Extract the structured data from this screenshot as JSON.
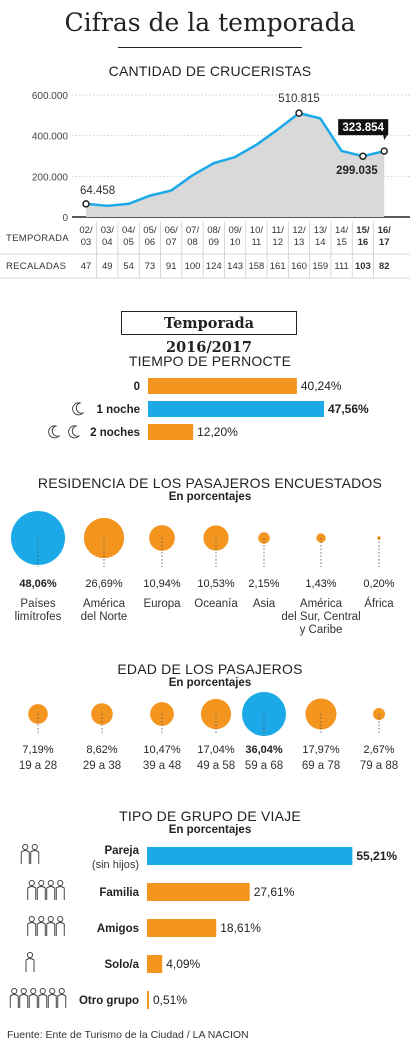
{
  "title": "Cifras de la temporada",
  "source": "Fuente: Ente de Turismo de la Ciudad / LA NACION",
  "colors": {
    "orange": "#f3951f",
    "blue": "#1ba9e8",
    "area": "#d9d9d9",
    "line": "#1ba9e8"
  },
  "cruise": {
    "section_title": "CANTIDAD DE CRUCERISTAS",
    "row_label_season": "TEMPORADA",
    "row_label_calls": "RECALADAS"
  },
  "season_box": "Temporada 2016/2017",
  "pernocte": {
    "section_title": "TIEMPO DE PERNOCTE",
    "moon_icon": "crescent-moon-icon"
  },
  "residencia": {
    "section_title": "RESIDENCIA DE LOS PASAJEROS ENCUESTADOS",
    "subtitle": "En porcentajes"
  },
  "edad": {
    "section_title": "EDAD DE LOS PASAJEROS",
    "subtitle": "En porcentajes"
  },
  "grupo": {
    "section_title": "TIPO DE GRUPO DE VIAJE",
    "subtitle": "En porcentajes",
    "person_icon": "person-icon"
  },
  "chart_data": [
    {
      "type": "area",
      "title": "CANTIDAD DE CRUCERISTAS",
      "categories": [
        "02/03",
        "03/04",
        "04/05",
        "05/06",
        "06/07",
        "07/08",
        "08/09",
        "09/10",
        "10/11",
        "11/12",
        "12/13",
        "13/14",
        "14/15",
        "15/16",
        "16/17"
      ],
      "values": [
        64458,
        55000,
        65000,
        105000,
        130000,
        205000,
        265000,
        295000,
        355000,
        430000,
        510815,
        485000,
        325000,
        299035,
        323854
      ],
      "recaladas": [
        47,
        49,
        54,
        73,
        91,
        100,
        124,
        143,
        158,
        161,
        160,
        159,
        111,
        103,
        82
      ],
      "yticks": [
        0,
        200000,
        400000,
        600000
      ],
      "ytick_labels": [
        "0",
        "200.000",
        "400.000",
        "600.000"
      ],
      "ylim": [
        0,
        600000
      ],
      "grid": true,
      "annotations": [
        {
          "index": 0,
          "text": "64.458",
          "style": "plain"
        },
        {
          "index": 10,
          "text": "510.815",
          "style": "plain"
        },
        {
          "index": 13,
          "text": "299.035",
          "style": "bold"
        },
        {
          "index": 14,
          "text": "323.854",
          "style": "boxed"
        }
      ]
    },
    {
      "type": "bar",
      "title": "TIEMPO DE PERNOCTE",
      "categories": [
        "0",
        "1 noche",
        "2 noches"
      ],
      "values": [
        40.24,
        47.56,
        12.2
      ],
      "value_labels": [
        "40,24%",
        "47,56%",
        "12,20%"
      ],
      "highlight": "1 noche",
      "moons": [
        0,
        1,
        2
      ]
    },
    {
      "type": "bubble",
      "title": "RESIDENCIA DE LOS PASAJEROS ENCUESTADOS",
      "subtitle": "En porcentajes",
      "categories": [
        [
          "Países",
          "limítrofes"
        ],
        [
          "América",
          "del Norte"
        ],
        [
          "Europa"
        ],
        [
          "Oceanía"
        ],
        [
          "Asia"
        ],
        [
          "América",
          "del Sur, Central",
          "y Caribe"
        ],
        [
          "África"
        ]
      ],
      "values": [
        48.06,
        26.69,
        10.94,
        10.53,
        2.15,
        1.43,
        0.2
      ],
      "value_labels": [
        "48,06%",
        "26,69%",
        "10,94%",
        "10,53%",
        "2,15%",
        "1,43%",
        "0,20%"
      ],
      "highlight_index": 0
    },
    {
      "type": "bubble",
      "title": "EDAD DE LOS PASAJEROS",
      "subtitle": "En porcentajes",
      "categories": [
        "19 a 28",
        "29 a 38",
        "39 a 48",
        "49 a 58",
        "59 a 68",
        "69 a 78",
        "79 a 88"
      ],
      "values": [
        7.19,
        8.62,
        10.47,
        17.04,
        36.04,
        17.97,
        2.67
      ],
      "value_labels": [
        "7,19%",
        "8,62%",
        "10,47%",
        "17,04%",
        "36,04%",
        "17,97%",
        "2,67%"
      ],
      "highlight_index": 4
    },
    {
      "type": "bar",
      "title": "TIPO DE GRUPO DE VIAJE",
      "subtitle": "En porcentajes",
      "categories": [
        [
          "Pareja",
          "(sin hijos)"
        ],
        [
          "Familia"
        ],
        [
          "Amigos"
        ],
        [
          "Solo/a"
        ],
        [
          "Otro grupo"
        ]
      ],
      "values": [
        55.21,
        27.61,
        18.61,
        4.09,
        0.51
      ],
      "value_labels": [
        "55,21%",
        "27,61%",
        "18,61%",
        "4,09%",
        "0,51%"
      ],
      "people": [
        2,
        4,
        4,
        1,
        6
      ],
      "highlight_index": 0
    }
  ]
}
